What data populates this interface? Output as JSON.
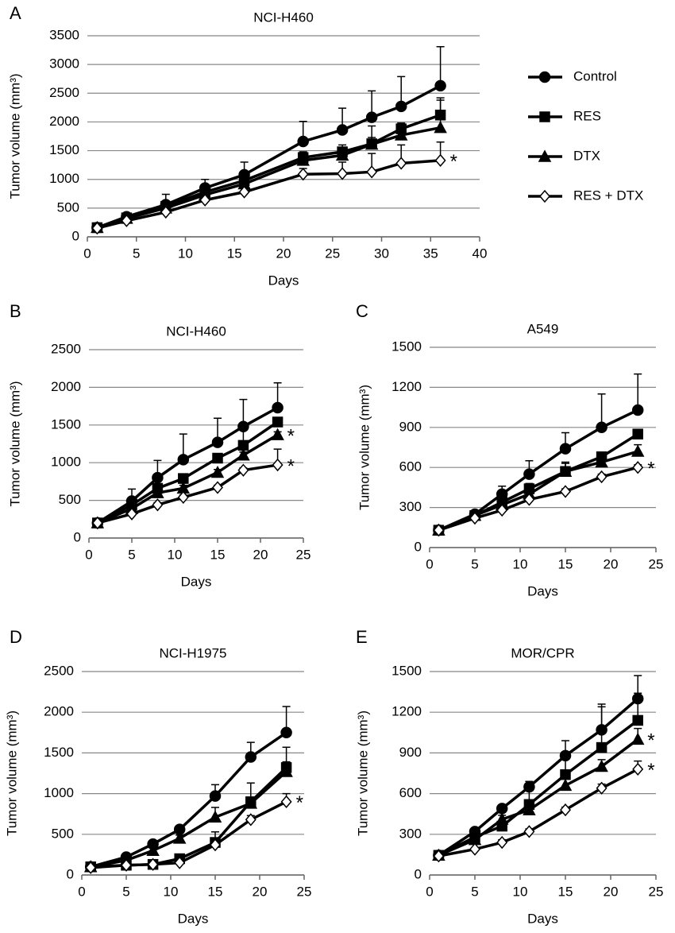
{
  "chart_data": [
    {
      "type": "line",
      "label": "A",
      "title": "NCI-H460",
      "x_label": "Days",
      "y_label": "Tumor volume (mm³)",
      "xlim": [
        0,
        40
      ],
      "xticks": [
        0,
        5,
        10,
        15,
        20,
        25,
        30,
        35,
        40
      ],
      "ylim": [
        0,
        3500
      ],
      "yticks": [
        0,
        500,
        1000,
        1500,
        2000,
        2500,
        3000,
        3500
      ],
      "grid": true,
      "legend": "right",
      "x": [
        1,
        4,
        8,
        12,
        16,
        22,
        26,
        29,
        32,
        36
      ],
      "series": [
        {
          "name": "Control",
          "color": "#000000",
          "marker": "circle",
          "values": [
            160,
            350,
            560,
            850,
            1080,
            1660,
            1860,
            2080,
            2270,
            2630
          ],
          "errors": [
            0,
            50,
            180,
            150,
            220,
            350,
            380,
            460,
            520,
            680
          ]
        },
        {
          "name": "RES",
          "color": "#000000",
          "marker": "square",
          "values": [
            160,
            330,
            530,
            780,
            980,
            1380,
            1480,
            1620,
            1880,
            2120
          ],
          "errors": [
            0,
            40,
            60,
            80,
            100,
            100,
            120,
            310,
            100,
            300
          ]
        },
        {
          "name": "DTX",
          "color": "#000000",
          "marker": "triangle",
          "values": [
            160,
            320,
            500,
            730,
            920,
            1330,
            1420,
            1610,
            1770,
            1900
          ],
          "errors": [
            0,
            30,
            50,
            60,
            80,
            100,
            100,
            120,
            150,
            480
          ]
        },
        {
          "name": "RES + DTX",
          "color": "#000000",
          "marker": "diamond-open",
          "values": [
            150,
            280,
            430,
            640,
            780,
            1090,
            1100,
            1130,
            1280,
            1330
          ],
          "errors": [
            0,
            30,
            40,
            60,
            80,
            100,
            200,
            320,
            320,
            320
          ]
        }
      ],
      "annotations": [
        {
          "text": "*",
          "x": 36,
          "y": 1330
        }
      ]
    },
    {
      "type": "line",
      "label": "B",
      "title": "NCI-H460",
      "x_label": "Days",
      "y_label": "Tumor volume (mm³)",
      "xlim": [
        0,
        25
      ],
      "xticks": [
        0,
        5,
        10,
        15,
        20,
        25
      ],
      "ylim": [
        0,
        2500
      ],
      "yticks": [
        0,
        500,
        1000,
        1500,
        2000,
        2500
      ],
      "grid": true,
      "x": [
        1,
        5,
        8,
        11,
        15,
        18,
        22
      ],
      "series": [
        {
          "color": "#000000",
          "marker": "circle",
          "values": [
            200,
            490,
            800,
            1040,
            1270,
            1480,
            1730
          ],
          "errors": [
            0,
            160,
            230,
            340,
            320,
            360,
            330
          ]
        },
        {
          "color": "#000000",
          "marker": "square",
          "values": [
            200,
            440,
            660,
            790,
            1060,
            1230,
            1540
          ],
          "errors": [
            0,
            40,
            60,
            60,
            60,
            200,
            40
          ]
        },
        {
          "color": "#000000",
          "marker": "triangle",
          "values": [
            200,
            390,
            600,
            660,
            870,
            1100,
            1370
          ],
          "errors": [
            0,
            30,
            40,
            40,
            40,
            40,
            40
          ]
        },
        {
          "color": "#000000",
          "marker": "diamond-open",
          "values": [
            200,
            320,
            440,
            540,
            670,
            900,
            970
          ],
          "errors": [
            0,
            30,
            30,
            30,
            30,
            30,
            210
          ]
        }
      ],
      "annotations": [
        {
          "text": "*",
          "x": 22,
          "y": 1370
        },
        {
          "text": "*",
          "x": 22,
          "y": 970
        }
      ]
    },
    {
      "type": "line",
      "label": "C",
      "title": "A549",
      "x_label": "Days",
      "y_label": "Tumor volume (mm³)",
      "xlim": [
        0,
        25
      ],
      "xticks": [
        0,
        5,
        10,
        15,
        20,
        25
      ],
      "ylim": [
        0,
        1500
      ],
      "yticks": [
        0,
        300,
        600,
        900,
        1200,
        1500
      ],
      "grid": true,
      "x": [
        1,
        5,
        8,
        11,
        15,
        19,
        23
      ],
      "series": [
        {
          "color": "#000000",
          "marker": "circle",
          "values": [
            130,
            250,
            400,
            550,
            740,
            900,
            1030
          ],
          "errors": [
            0,
            20,
            60,
            100,
            120,
            250,
            270
          ]
        },
        {
          "color": "#000000",
          "marker": "square",
          "values": [
            130,
            240,
            340,
            440,
            570,
            680,
            850
          ],
          "errors": [
            0,
            15,
            30,
            40,
            70,
            20,
            30
          ]
        },
        {
          "color": "#000000",
          "marker": "triangle",
          "values": [
            130,
            240,
            320,
            400,
            570,
            640,
            720
          ],
          "errors": [
            0,
            10,
            20,
            40,
            60,
            40,
            50
          ]
        },
        {
          "color": "#000000",
          "marker": "diamond-open",
          "values": [
            130,
            220,
            280,
            360,
            420,
            530,
            600
          ],
          "errors": [
            0,
            10,
            20,
            20,
            20,
            20,
            20
          ]
        }
      ],
      "annotations": [
        {
          "text": "*",
          "x": 23,
          "y": 600
        }
      ]
    },
    {
      "type": "line",
      "label": "D",
      "title": "NCI-H1975",
      "x_label": "Days",
      "y_label": "Tumor volume (mm³)",
      "xlim": [
        0,
        25
      ],
      "xticks": [
        0,
        5,
        10,
        15,
        20,
        25
      ],
      "ylim": [
        0,
        2500
      ],
      "yticks": [
        0,
        500,
        1000,
        1500,
        2000,
        2500
      ],
      "grid": true,
      "x": [
        1,
        5,
        8,
        11,
        15,
        19,
        23
      ],
      "series": [
        {
          "color": "#000000",
          "marker": "circle",
          "values": [
            100,
            220,
            380,
            560,
            970,
            1450,
            1750
          ],
          "errors": [
            0,
            20,
            30,
            40,
            140,
            180,
            320
          ]
        },
        {
          "color": "#000000",
          "marker": "square",
          "values": [
            100,
            120,
            130,
            200,
            400,
            900,
            1320
          ],
          "errors": [
            0,
            10,
            20,
            20,
            130,
            230,
            250
          ]
        },
        {
          "color": "#000000",
          "marker": "triangle",
          "values": [
            100,
            180,
            300,
            450,
            710,
            880,
            1270
          ],
          "errors": [
            0,
            20,
            30,
            40,
            120,
            70,
            120
          ]
        },
        {
          "color": "#000000",
          "marker": "diamond-open",
          "values": [
            90,
            120,
            130,
            150,
            370,
            680,
            900
          ],
          "errors": [
            0,
            10,
            10,
            20,
            30,
            50,
            100
          ]
        }
      ],
      "annotations": [
        {
          "text": "*",
          "x": 23,
          "y": 900
        }
      ]
    },
    {
      "type": "line",
      "label": "E",
      "title": "MOR/CPR",
      "x_label": "Days",
      "y_label": "Tumor volume (mm³)",
      "xlim": [
        0,
        25
      ],
      "xticks": [
        0,
        5,
        10,
        15,
        20,
        25
      ],
      "ylim": [
        0,
        1500
      ],
      "yticks": [
        0,
        300,
        600,
        900,
        1200,
        1500
      ],
      "grid": true,
      "x": [
        1,
        5,
        8,
        11,
        15,
        19,
        23
      ],
      "series": [
        {
          "color": "#000000",
          "marker": "circle",
          "values": [
            145,
            320,
            490,
            650,
            880,
            1070,
            1300
          ],
          "errors": [
            0,
            20,
            20,
            40,
            110,
            190,
            170
          ]
        },
        {
          "color": "#000000",
          "marker": "square",
          "values": [
            145,
            280,
            360,
            520,
            740,
            940,
            1140
          ],
          "errors": [
            0,
            20,
            30,
            100,
            130,
            300,
            200
          ]
        },
        {
          "color": "#000000",
          "marker": "triangle",
          "values": [
            145,
            260,
            410,
            480,
            660,
            800,
            1000
          ],
          "errors": [
            0,
            20,
            30,
            40,
            60,
            50,
            80
          ]
        },
        {
          "color": "#000000",
          "marker": "diamond-open",
          "values": [
            140,
            190,
            240,
            320,
            480,
            640,
            780
          ],
          "errors": [
            0,
            10,
            20,
            20,
            20,
            30,
            60
          ]
        }
      ],
      "annotations": [
        {
          "text": "*",
          "x": 23,
          "y": 1000
        },
        {
          "text": "*",
          "x": 23,
          "y": 780
        }
      ]
    }
  ]
}
